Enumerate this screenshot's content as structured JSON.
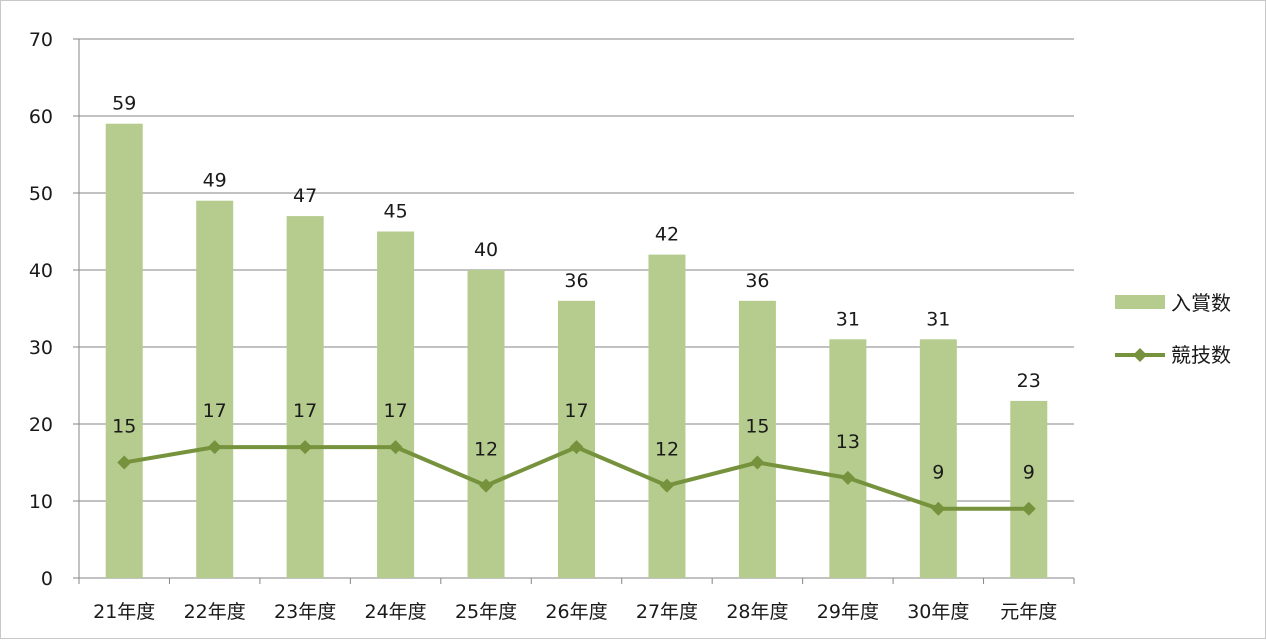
{
  "colors": {
    "bar": "#b5cc8e",
    "line": "#76923c",
    "grid": "#868686",
    "axis": "#868686"
  },
  "chart_data": {
    "type": "bar",
    "title": "",
    "xlabel": "",
    "ylabel": "",
    "categories": [
      "21年度",
      "22年度",
      "23年度",
      "24年度",
      "25年度",
      "26年度",
      "27年度",
      "28年度",
      "29年度",
      "30年度",
      "元年度"
    ],
    "ylim": [
      0,
      70
    ],
    "yticks": [
      "0",
      "10",
      "20",
      "30",
      "40",
      "50",
      "60",
      "70"
    ],
    "grid": true,
    "legend_position": "right",
    "series": [
      {
        "name": "入賞数",
        "type": "bar",
        "values": [
          59,
          49,
          47,
          45,
          40,
          36,
          42,
          36,
          31,
          31,
          23
        ],
        "labels": [
          "59",
          "49",
          "47",
          "45",
          "40",
          "36",
          "42",
          "36",
          "31",
          "31",
          "23"
        ]
      },
      {
        "name": "競技数",
        "type": "line",
        "marker": "diamond",
        "values": [
          15,
          17,
          17,
          17,
          12,
          17,
          12,
          15,
          13,
          9,
          9
        ],
        "labels": [
          "15",
          "17",
          "17",
          "17",
          "12",
          "17",
          "12",
          "15",
          "13",
          "9",
          "9"
        ]
      }
    ]
  }
}
